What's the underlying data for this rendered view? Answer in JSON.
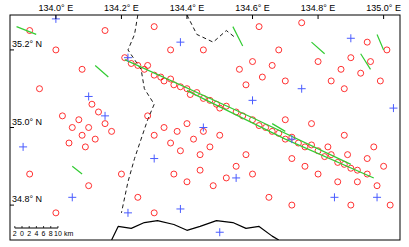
{
  "chart_data": {
    "type": "map",
    "xlim": [
      133.86,
      135.05
    ],
    "ylim": [
      34.71,
      35.29
    ],
    "xticks": [
      {
        "value": 134.0,
        "label": "134.0° E"
      },
      {
        "value": 134.2,
        "label": "134.2° E"
      },
      {
        "value": 134.4,
        "label": "134.4° E"
      },
      {
        "value": 134.6,
        "label": "134.6° E"
      },
      {
        "value": 134.8,
        "label": "134.8° E"
      },
      {
        "value": 135.0,
        "label": "135.0° E"
      }
    ],
    "yticks": [
      {
        "value": 34.8,
        "label": "34.8° N"
      },
      {
        "value": 35.0,
        "label": "35.0° N"
      },
      {
        "value": 35.2,
        "label": "35.2° N"
      }
    ],
    "scale_bar": {
      "ticks": [
        {
          "value": -2,
          "label": "2"
        },
        0,
        2,
        4,
        6,
        8,
        10
      ],
      "unit": "km"
    },
    "series": [
      {
        "type": "line",
        "color": "#000000",
        "line_style": "dashed",
        "x": [
          134.25,
          134.24,
          134.22,
          134.26,
          134.27,
          134.3,
          134.28,
          134.26,
          134.24,
          134.22,
          134.2,
          null,
          134.4,
          134.43,
          134.48,
          134.52,
          134.55
        ],
        "values": [
          35.29,
          35.24,
          35.2,
          35.15,
          35.1,
          35.06,
          35.02,
          34.97,
          34.92,
          34.86,
          34.78,
          null,
          35.29,
          35.24,
          35.22,
          35.25,
          35.23
        ]
      },
      {
        "type": "line",
        "color": "#000000",
        "line_style": "solid",
        "x": [
          134.17,
          134.19,
          134.23,
          134.27,
          134.31,
          134.36,
          134.4,
          134.44,
          134.49,
          134.54,
          134.58,
          134.62,
          134.66,
          134.68
        ],
        "values": [
          34.71,
          34.745,
          34.74,
          34.755,
          34.76,
          34.75,
          34.735,
          34.745,
          34.76,
          34.755,
          34.74,
          34.745,
          34.72,
          34.71
        ]
      },
      {
        "type": "scatter",
        "color": "#ff0000",
        "marker": "circle",
        "x": [
          134.21,
          134.23,
          134.25,
          134.27,
          134.28,
          134.3,
          134.32,
          134.33,
          134.35,
          134.36,
          134.38,
          134.4,
          134.41,
          134.43,
          134.45,
          134.47,
          134.49,
          134.5,
          134.52,
          134.55,
          134.57,
          134.6,
          134.62,
          134.64,
          134.66,
          134.68,
          134.7,
          134.72,
          134.74,
          134.76,
          134.78,
          134.8,
          134.82,
          134.84,
          134.86,
          134.88,
          134.9,
          134.92,
          134.95,
          134.02,
          134.05,
          134.07,
          134.08,
          134.1,
          134.12,
          134.13,
          134.15,
          134.17,
          134.09,
          134.04,
          134.11,
          134.3,
          134.33,
          134.35,
          134.37,
          134.4,
          134.42,
          134.45,
          134.47,
          134.44,
          134.38,
          134.5,
          134.28,
          134.36,
          134.4,
          134.44,
          134.48,
          134.52,
          134.55,
          134.58,
          134.6,
          134.76,
          134.8,
          134.83,
          134.86,
          134.89,
          134.92,
          134.95,
          134.97,
          135.0,
          134.98,
          134.72,
          134.7,
          134.78,
          134.88,
          134.84,
          134.87,
          134.9,
          134.93,
          134.96,
          134.99,
          135.01,
          134.95,
          134.88,
          134.8,
          134.56,
          134.6,
          134.63,
          134.66,
          134.7,
          134.58,
          134.68,
          133.92,
          133.95,
          134.0,
          134.08,
          134.15,
          134.3,
          134.45,
          134.62,
          134.75,
          134.1,
          134.2,
          134.25,
          134.3,
          134.0,
          133.92,
          134.65,
          134.72,
          134.9,
          135.02,
          134.35
        ],
        "values": [
          35.18,
          35.165,
          35.16,
          35.15,
          35.16,
          35.135,
          35.13,
          35.12,
          35.125,
          35.11,
          35.105,
          35.1,
          35.085,
          35.09,
          35.075,
          35.07,
          35.06,
          35.05,
          35.055,
          35.04,
          35.03,
          35.02,
          35.005,
          35.0,
          34.99,
          34.985,
          34.97,
          34.975,
          34.96,
          34.95,
          34.955,
          34.94,
          34.925,
          34.93,
          34.91,
          34.905,
          34.895,
          34.89,
          34.88,
          35.03,
          35.0,
          35.02,
          34.98,
          35.0,
          34.97,
          35.04,
          35.01,
          34.99,
          34.95,
          34.96,
          35.06,
          34.98,
          35.0,
          34.96,
          34.99,
          35.01,
          34.97,
          34.99,
          34.95,
          34.93,
          34.94,
          34.98,
          35.03,
          34.88,
          34.86,
          34.89,
          34.85,
          34.87,
          34.9,
          34.93,
          34.88,
          34.9,
          34.88,
          34.95,
          34.86,
          34.93,
          34.86,
          34.92,
          34.95,
          34.9,
          34.85,
          34.92,
          35.02,
          35.01,
          34.98,
          35.12,
          35.15,
          35.18,
          35.14,
          35.17,
          35.12,
          35.2,
          35.22,
          35.1,
          35.17,
          35.15,
          35.17,
          35.13,
          35.16,
          35.12,
          35.11,
          35.2,
          35.25,
          35.1,
          35.2,
          35.15,
          35.25,
          35.26,
          35.2,
          35.26,
          35.27,
          34.85,
          34.88,
          34.82,
          34.78,
          34.78,
          34.88,
          34.82,
          34.8,
          34.8,
          34.8,
          35.2
        ]
      },
      {
        "type": "line",
        "color": "#33cc33",
        "line_style": "solid",
        "x": [
          134.21,
          134.6,
          134.9,
          null,
          134.4,
          134.7,
          134.97,
          null,
          133.88,
          133.94,
          null,
          134.12,
          134.16,
          null,
          134.54,
          134.57,
          null,
          134.93,
          134.96,
          null,
          134.66,
          134.7,
          null,
          134.98,
          135.0,
          null,
          134.05,
          134.08,
          null,
          134.78,
          134.82
        ],
        "values": [
          35.175,
          35.025,
          34.905,
          null,
          35.095,
          34.97,
          34.87,
          null,
          35.26,
          35.24,
          null,
          35.16,
          35.13,
          null,
          35.26,
          35.21,
          null,
          35.19,
          35.15,
          null,
          35.01,
          34.99,
          null,
          35.24,
          35.2,
          null,
          34.9,
          34.88,
          null,
          35.22,
          35.19
        ]
      },
      {
        "type": "scatter",
        "color": "#4a5cff",
        "marker": "cross",
        "x": [
          134.0,
          134.1,
          134.22,
          134.38,
          134.15,
          134.45,
          134.3,
          134.05,
          134.38,
          134.55,
          134.6,
          134.75,
          134.9,
          134.85,
          134.98,
          135.03,
          134.72,
          134.5,
          134.22,
          133.9
        ],
        "values": [
          35.28,
          35.08,
          35.18,
          35.22,
          35.03,
          35.0,
          34.92,
          34.82,
          34.79,
          34.87,
          35.07,
          35.1,
          35.23,
          34.82,
          34.82,
          35.05,
          34.97,
          34.73,
          34.78,
          34.95
        ]
      }
    ]
  }
}
